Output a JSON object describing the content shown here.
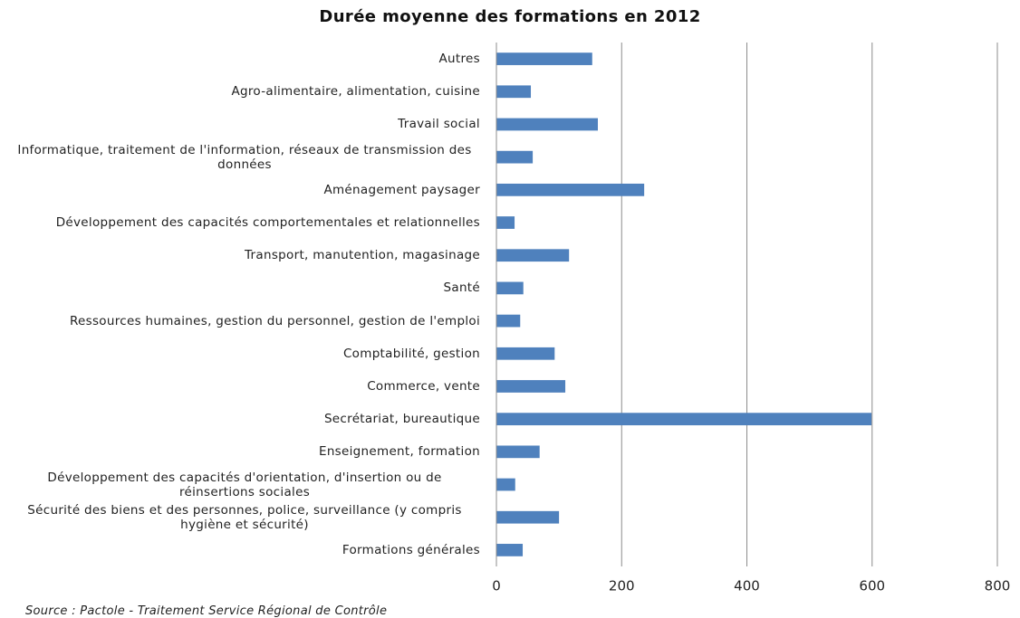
{
  "chart_data": {
    "type": "barh",
    "title": "Durée moyenne des formations en 2012",
    "categories": [
      "Autres",
      "Agro-alimentaire, alimentation, cuisine",
      "Travail social",
      "Informatique, traitement de l'information, réseaux de transmission des données",
      "Aménagement paysager",
      "Développement des capacités comportementales et relationnelles",
      "Transport, manutention, magasinage",
      "Santé",
      "Ressources humaines, gestion du personnel, gestion de l'emploi",
      "Comptabilité, gestion",
      "Commerce, vente",
      "Secrétariat, bureautique",
      "Enseignement, formation",
      "Développement des capacités d'orientation, d'insertion ou de réinsertions sociales",
      "Sécurité des biens et des personnes, police, surveillance (y compris hygiène et sécurité)",
      "Formations générales"
    ],
    "values": [
      153,
      55,
      162,
      58,
      236,
      29,
      116,
      43,
      38,
      93,
      110,
      599,
      69,
      30,
      100,
      42
    ],
    "color": "#4f81bd",
    "xlim": [
      0,
      800
    ],
    "xticks": [
      0,
      200,
      400,
      600,
      800
    ],
    "grid": true,
    "source": "Source : Pactole - Traitement Service Régional de Contrôle"
  }
}
